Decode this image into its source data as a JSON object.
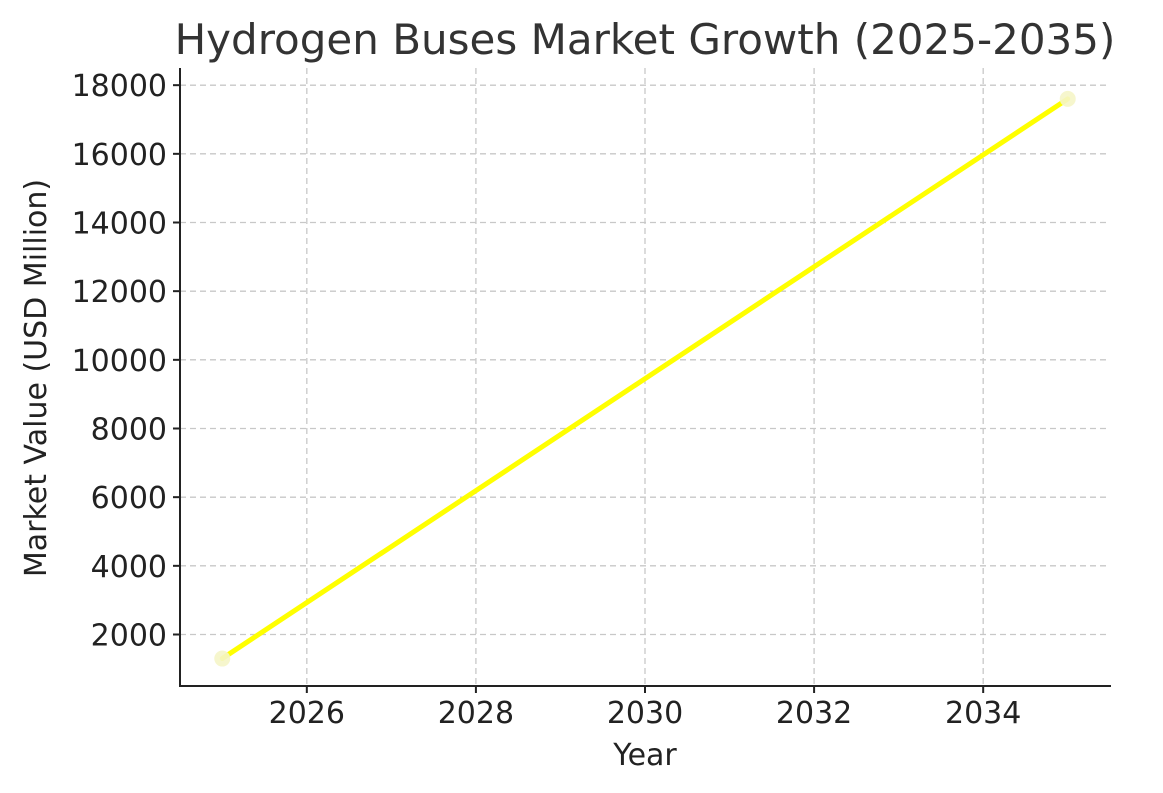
{
  "chart_data": {
    "type": "line",
    "title": "Hydrogen Buses Market Growth (2025-2035)",
    "xlabel": "Year",
    "ylabel": "Market Value (USD Million)",
    "xlim": [
      2024.5,
      2035.5
    ],
    "ylim": [
      500,
      18500
    ],
    "xticks": [
      2026,
      2028,
      2030,
      2032,
      2034
    ],
    "yticks": [
      2000,
      4000,
      6000,
      8000,
      10000,
      12000,
      14000,
      16000,
      18000
    ],
    "grid": true,
    "series": [
      {
        "x": [
          2025,
          2035
        ],
        "values": [
          1300,
          17600
        ],
        "color": "#ffff00",
        "marker_color": "#f5f5c8"
      }
    ]
  }
}
